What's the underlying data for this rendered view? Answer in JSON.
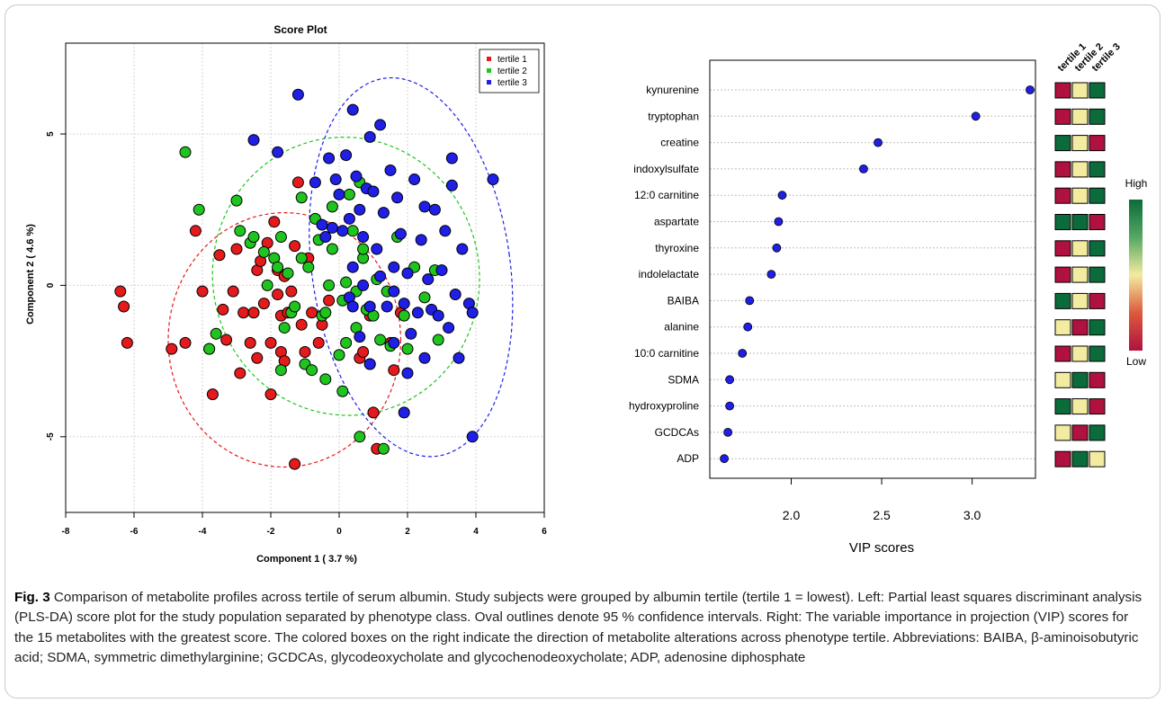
{
  "score_plot": {
    "title": "Score Plot",
    "xlabel": "Component 1 ( 3.7 %)",
    "ylabel": "Component 2 ( 4.6 %)",
    "legend": [
      "tertile 1",
      "tertile 2",
      "tertile 3"
    ]
  },
  "vip_plot": {
    "xlabel": "VIP scores",
    "heat_headers": [
      "tertile 1",
      "tertile 2",
      "tertile 3"
    ],
    "colorbar_high": "High",
    "colorbar_low": "Low"
  },
  "caption": {
    "label": "Fig. 3",
    "text": "Comparison of metabolite profiles across tertile of serum albumin. Study subjects were grouped by albumin tertile (tertile 1 = lowest). Left: Partial least squares discriminant analysis (PLS-DA) score plot for the study population separated by phenotype class. Oval outlines denote 95 % confidence intervals. Right: The variable importance in projection (VIP) scores for the 15 metabolites with the greatest score. The colored boxes on the right indicate the direction of metabolite alterations across phenotype tertile. Abbreviations: BAIBA, β-aminoisobutyric acid; SDMA, symmetric dimethylarginine; GCDCAs, glycodeoxycholate and glycochenodeoxycholate; ADP, adenosine diphosphate"
  },
  "colors": {
    "tertile_1": "#e41a1c",
    "tertile_2": "#1fc41f",
    "tertile_3": "#1f1fe6",
    "heat_low": "#b0123f",
    "heat_mid": "#f3eba0",
    "heat_high": "#0b6b3a"
  },
  "chart_data": [
    {
      "type": "scatter",
      "title": "Score Plot",
      "xlabel": "Component 1 ( 3.7 %)",
      "ylabel": "Component 2 ( 4.6 %)",
      "xlim": [
        -8,
        6
      ],
      "ylim": [
        -7.5,
        8
      ],
      "xticks": [
        -8,
        -6,
        -4,
        -2,
        0,
        2,
        4,
        6
      ],
      "yticks": [
        -5,
        0,
        5
      ],
      "grid": true,
      "legend_position": "top-right",
      "series": [
        {
          "name": "tertile 1",
          "color": "#e41a1c",
          "points": [
            [
              -6.4,
              -0.2
            ],
            [
              -6.3,
              -0.7
            ],
            [
              -6.2,
              -1.9
            ],
            [
              -4.9,
              -2.1
            ],
            [
              -4.5,
              -1.9
            ],
            [
              -4.2,
              1.8
            ],
            [
              -4.0,
              -0.2
            ],
            [
              -3.8,
              -2.1
            ],
            [
              -3.7,
              -3.6
            ],
            [
              -3.5,
              1.0
            ],
            [
              -3.4,
              -0.8
            ],
            [
              -3.3,
              -1.8
            ],
            [
              -3.1,
              -0.2
            ],
            [
              -3.0,
              1.2
            ],
            [
              -2.9,
              -2.9
            ],
            [
              -2.8,
              -0.9
            ],
            [
              -2.6,
              -1.9
            ],
            [
              -2.5,
              -0.9
            ],
            [
              -2.4,
              -2.4
            ],
            [
              -2.4,
              0.5
            ],
            [
              -2.3,
              0.8
            ],
            [
              -2.2,
              -0.6
            ],
            [
              -2.1,
              1.4
            ],
            [
              -2.0,
              -1.9
            ],
            [
              -2.0,
              -3.6
            ],
            [
              -1.9,
              2.1
            ],
            [
              -1.8,
              0.5
            ],
            [
              -1.8,
              -0.3
            ],
            [
              -1.7,
              -1.0
            ],
            [
              -1.7,
              -2.2
            ],
            [
              -1.6,
              -2.5
            ],
            [
              -1.6,
              0.3
            ],
            [
              -1.5,
              -0.9
            ],
            [
              -1.4,
              -0.2
            ],
            [
              -1.3,
              1.3
            ],
            [
              -1.2,
              3.4
            ],
            [
              -1.1,
              -1.3
            ],
            [
              -1.0,
              -2.2
            ],
            [
              -0.9,
              0.9
            ],
            [
              -0.8,
              -0.9
            ],
            [
              -0.6,
              -1.9
            ],
            [
              -0.5,
              -1.3
            ],
            [
              -0.3,
              -0.5
            ],
            [
              0.6,
              -2.4
            ],
            [
              0.7,
              -2.2
            ],
            [
              0.9,
              -1.0
            ],
            [
              1.0,
              -4.2
            ],
            [
              1.1,
              -5.4
            ],
            [
              1.5,
              -1.9
            ],
            [
              1.6,
              -2.8
            ],
            [
              1.8,
              -0.9
            ],
            [
              -1.3,
              -5.9
            ]
          ]
        },
        {
          "name": "tertile 2",
          "color": "#1fc41f",
          "points": [
            [
              -4.5,
              4.4
            ],
            [
              -4.1,
              2.5
            ],
            [
              -3.8,
              -2.1
            ],
            [
              -3.6,
              -1.6
            ],
            [
              -3.0,
              2.8
            ],
            [
              -2.9,
              1.8
            ],
            [
              -2.6,
              1.4
            ],
            [
              -2.5,
              1.6
            ],
            [
              -2.2,
              1.1
            ],
            [
              -2.1,
              0.0
            ],
            [
              -1.9,
              0.9
            ],
            [
              -1.8,
              0.6
            ],
            [
              -1.7,
              -2.8
            ],
            [
              -1.7,
              1.6
            ],
            [
              -1.6,
              -1.4
            ],
            [
              -1.5,
              0.4
            ],
            [
              -1.4,
              -0.9
            ],
            [
              -1.3,
              -0.7
            ],
            [
              -1.1,
              2.9
            ],
            [
              -1.1,
              0.9
            ],
            [
              -1.0,
              -2.6
            ],
            [
              -0.9,
              0.6
            ],
            [
              -0.8,
              -2.8
            ],
            [
              -0.7,
              2.2
            ],
            [
              -0.6,
              1.5
            ],
            [
              -0.5,
              -1.0
            ],
            [
              -0.4,
              -0.9
            ],
            [
              -0.4,
              -3.1
            ],
            [
              -0.3,
              0.0
            ],
            [
              -0.2,
              2.6
            ],
            [
              -0.2,
              1.2
            ],
            [
              0.0,
              -2.3
            ],
            [
              0.1,
              -3.5
            ],
            [
              0.1,
              -0.5
            ],
            [
              0.2,
              0.1
            ],
            [
              0.2,
              -1.9
            ],
            [
              0.3,
              3.0
            ],
            [
              0.4,
              1.8
            ],
            [
              0.5,
              -0.2
            ],
            [
              0.5,
              -1.4
            ],
            [
              0.6,
              3.4
            ],
            [
              0.7,
              0.9
            ],
            [
              0.7,
              1.2
            ],
            [
              0.8,
              -0.8
            ],
            [
              0.9,
              -2.6
            ],
            [
              1.0,
              -1.0
            ],
            [
              1.1,
              0.2
            ],
            [
              1.2,
              -1.8
            ],
            [
              1.3,
              -5.4
            ],
            [
              1.4,
              -0.2
            ],
            [
              1.5,
              -2.0
            ],
            [
              1.7,
              1.6
            ],
            [
              1.9,
              -1.0
            ],
            [
              2.0,
              -2.1
            ],
            [
              2.2,
              0.6
            ],
            [
              2.5,
              -0.4
            ],
            [
              2.8,
              0.5
            ],
            [
              2.9,
              -1.8
            ],
            [
              0.6,
              -5.0
            ]
          ]
        },
        {
          "name": "tertile 3",
          "color": "#1f1fe6",
          "points": [
            [
              -2.5,
              4.8
            ],
            [
              -1.8,
              4.4
            ],
            [
              -1.2,
              6.3
            ],
            [
              -0.7,
              3.4
            ],
            [
              -0.5,
              2.0
            ],
            [
              -0.4,
              1.6
            ],
            [
              -0.3,
              4.2
            ],
            [
              -0.2,
              1.9
            ],
            [
              -0.1,
              3.5
            ],
            [
              0.0,
              3.0
            ],
            [
              0.1,
              1.8
            ],
            [
              0.2,
              4.3
            ],
            [
              0.3,
              -0.4
            ],
            [
              0.3,
              2.2
            ],
            [
              0.4,
              0.6
            ],
            [
              0.4,
              5.8
            ],
            [
              0.5,
              3.6
            ],
            [
              0.6,
              2.5
            ],
            [
              0.6,
              -1.7
            ],
            [
              0.7,
              0.0
            ],
            [
              0.7,
              1.6
            ],
            [
              0.8,
              3.2
            ],
            [
              0.9,
              -2.6
            ],
            [
              0.9,
              -0.7
            ],
            [
              1.0,
              3.1
            ],
            [
              1.1,
              1.2
            ],
            [
              1.2,
              0.3
            ],
            [
              1.3,
              2.4
            ],
            [
              1.4,
              -0.7
            ],
            [
              1.5,
              3.8
            ],
            [
              1.6,
              -0.2
            ],
            [
              1.6,
              -1.9
            ],
            [
              1.7,
              2.9
            ],
            [
              1.8,
              1.7
            ],
            [
              1.9,
              -0.6
            ],
            [
              2.0,
              0.4
            ],
            [
              2.0,
              -2.9
            ],
            [
              2.1,
              -1.6
            ],
            [
              2.2,
              3.5
            ],
            [
              2.3,
              -0.9
            ],
            [
              2.4,
              1.5
            ],
            [
              2.5,
              2.6
            ],
            [
              2.5,
              -2.4
            ],
            [
              2.6,
              0.2
            ],
            [
              2.7,
              -0.8
            ],
            [
              2.8,
              2.5
            ],
            [
              2.9,
              -1.0
            ],
            [
              3.0,
              0.5
            ],
            [
              3.1,
              1.8
            ],
            [
              3.2,
              -1.4
            ],
            [
              3.3,
              3.3
            ],
            [
              3.3,
              4.2
            ],
            [
              3.4,
              -0.3
            ],
            [
              3.5,
              -2.4
            ],
            [
              3.6,
              1.2
            ],
            [
              3.8,
              -0.6
            ],
            [
              3.9,
              -0.9
            ],
            [
              3.9,
              -5.0
            ],
            [
              4.5,
              3.5
            ],
            [
              1.9,
              -4.2
            ],
            [
              1.2,
              5.3
            ],
            [
              0.9,
              4.9
            ],
            [
              0.4,
              -0.7
            ],
            [
              1.6,
              0.6
            ]
          ]
        }
      ],
      "ellipses": [
        {
          "series": "tertile 1",
          "center": [
            -1.6,
            -1.8
          ],
          "radii": [
            3.4,
            4.2
          ],
          "angle_deg": 0
        },
        {
          "series": "tertile 2",
          "center": [
            0.2,
            0.3
          ],
          "radii": [
            3.9,
            4.6
          ],
          "angle_deg": -10
        },
        {
          "series": "tertile 3",
          "center": [
            2.1,
            0.6
          ],
          "radii": [
            2.9,
            6.3
          ],
          "angle_deg": -8
        }
      ]
    },
    {
      "type": "scatter",
      "xlabel": "VIP scores",
      "xlim": [
        1.55,
        3.35
      ],
      "xticks": [
        2.0,
        2.5,
        3.0
      ],
      "grid": true,
      "categories": [
        "kynurenine",
        "tryptophan",
        "creatine",
        "indoxylsulfate",
        "12:0 carnitine",
        "aspartate",
        "thyroxine",
        "indolelactate",
        "BAIBA",
        "alanine",
        "10:0 carnitine",
        "SDMA",
        "hydroxyproline",
        "GCDCAs",
        "ADP"
      ],
      "values": [
        3.32,
        3.02,
        2.48,
        2.4,
        1.95,
        1.93,
        1.92,
        1.89,
        1.77,
        1.76,
        1.73,
        1.66,
        1.66,
        1.65,
        1.63
      ],
      "heatmap": {
        "columns": [
          "tertile 1",
          "tertile 2",
          "tertile 3"
        ],
        "levels": [
          [
            "low",
            "mid",
            "high"
          ],
          [
            "low",
            "mid",
            "high"
          ],
          [
            "high",
            "mid",
            "low"
          ],
          [
            "low",
            "mid",
            "high"
          ],
          [
            "low",
            "mid",
            "high"
          ],
          [
            "high",
            "high",
            "low"
          ],
          [
            "low",
            "mid",
            "high"
          ],
          [
            "low",
            "mid",
            "high"
          ],
          [
            "high",
            "mid",
            "low"
          ],
          [
            "mid",
            "low",
            "high"
          ],
          [
            "low",
            "mid",
            "high"
          ],
          [
            "mid",
            "high",
            "low"
          ],
          [
            "high",
            "mid",
            "low"
          ],
          [
            "mid",
            "low",
            "high"
          ],
          [
            "low",
            "high",
            "mid"
          ]
        ]
      },
      "colorbar": {
        "high": "High",
        "low": "Low"
      }
    }
  ]
}
